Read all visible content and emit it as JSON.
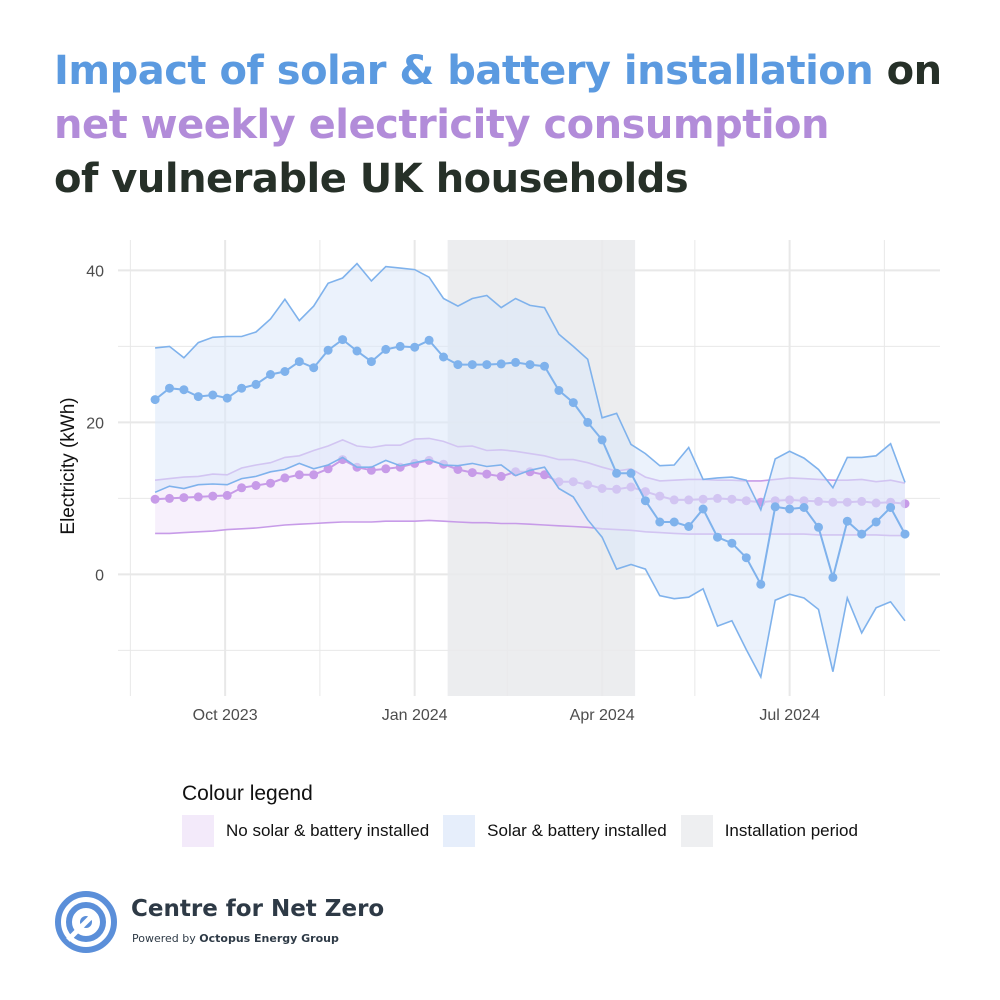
{
  "header": {
    "title_part1": "Impact of solar & battery installation",
    "title_part2": " on",
    "title_part3": "net weekly electricity consumption",
    "title_part4": "of vulnerable UK households"
  },
  "legend": {
    "title": "Colour legend",
    "items": [
      {
        "label": "No solar & battery installed",
        "color": "#f3eafa"
      },
      {
        "label": "Solar & battery installed",
        "color": "#e6eefb"
      },
      {
        "label": "Installation period",
        "color": "#eeeff1"
      }
    ]
  },
  "branding": {
    "name": "Centre for Net Zero",
    "powered_prefix": "Powered by ",
    "powered_company": "Octopus Energy Group",
    "logo_icon": "target-rings-icon",
    "accent": "#5b8fd9"
  },
  "colors": {
    "solar_line": "#7fb2ec",
    "solar_fill": "#dbe7fa",
    "no_solar_line": "#c79be8",
    "no_solar_fill": "#f1e6fa",
    "installation_band": "#e9eaec",
    "grid": "#e8e8e8"
  },
  "chart_data": {
    "type": "line",
    "ylabel": "Electricity (kWh)",
    "xlabel": "",
    "x_ticks": [
      "Oct 2023",
      "Jan 2024",
      "Apr 2024",
      "Jul 2024"
    ],
    "y_ticks": [
      0,
      20,
      40
    ],
    "ylim": [
      -16,
      44
    ],
    "x_start": "2023-08-28",
    "grid": true,
    "installation_period": {
      "start": "2024-01-17",
      "end": "2024-04-17"
    },
    "series": [
      {
        "name": "Solar & battery installed",
        "band": true,
        "values": [
          23.0,
          24.5,
          24.3,
          23.4,
          23.6,
          23.2,
          24.5,
          25.0,
          26.3,
          26.7,
          28.0,
          27.2,
          29.5,
          30.9,
          29.4,
          28.0,
          29.6,
          30.0,
          29.9,
          30.8,
          28.6,
          27.6,
          27.6,
          27.6,
          27.7,
          27.9,
          27.6,
          27.4,
          24.2,
          22.6,
          20.0,
          17.7,
          13.3,
          13.3,
          9.7,
          6.9,
          6.9,
          6.3,
          8.6,
          4.9,
          4.1,
          2.2,
          -1.3,
          8.9,
          8.6,
          8.8,
          6.2,
          -0.4,
          7.0,
          5.3,
          6.9,
          8.8,
          5.3
        ],
        "upper": [
          29.8,
          30.0,
          28.5,
          30.5,
          31.2,
          31.3,
          31.3,
          31.9,
          33.6,
          36.2,
          33.4,
          35.3,
          38.3,
          39.0,
          40.9,
          38.6,
          40.5,
          40.3,
          40.1,
          39.1,
          36.3,
          35.3,
          36.3,
          36.7,
          35.1,
          36.3,
          35.4,
          35.1,
          31.6,
          30.0,
          28.3,
          20.6,
          21.2,
          17.1,
          15.9,
          14.3,
          14.4,
          16.7,
          12.5,
          12.7,
          12.8,
          12.4,
          8.5,
          15.2,
          16.2,
          15.3,
          13.8,
          11.4,
          15.4,
          15.4,
          15.6,
          17.2,
          12.1
        ],
        "lower": [
          10.8,
          11.6,
          11.3,
          11.8,
          11.9,
          11.8,
          12.6,
          12.9,
          13.5,
          13.8,
          14.6,
          13.9,
          14.4,
          15.4,
          14.1,
          14.1,
          15.0,
          14.3,
          14.7,
          15.1,
          14.4,
          14.3,
          14.6,
          14.2,
          14.4,
          13.0,
          13.7,
          14.1,
          11.3,
          10.2,
          7.2,
          4.9,
          0.7,
          1.3,
          0.7,
          -2.8,
          -3.2,
          -3.0,
          -1.9,
          -6.8,
          -6.1,
          -9.9,
          -13.5,
          -3.4,
          -2.6,
          -3.1,
          -4.6,
          -12.8,
          -3.1,
          -7.7,
          -4.4,
          -3.6,
          -6.1
        ]
      },
      {
        "name": "No solar & battery installed",
        "band": true,
        "values": [
          9.9,
          10.0,
          10.1,
          10.2,
          10.3,
          10.4,
          11.4,
          11.7,
          12.0,
          12.7,
          13.1,
          13.1,
          13.9,
          15.1,
          14.1,
          13.7,
          13.9,
          14.1,
          14.6,
          15.0,
          14.5,
          13.8,
          13.4,
          13.2,
          12.9,
          13.5,
          13.5,
          13.1,
          12.2,
          12.2,
          11.8,
          11.3,
          11.2,
          11.5,
          10.9,
          10.3,
          9.8,
          9.8,
          9.9,
          10.0,
          9.9,
          9.7,
          9.5,
          9.7,
          9.8,
          9.7,
          9.6,
          9.5,
          9.5,
          9.6,
          9.4,
          9.5,
          9.3
        ],
        "upper": [
          12.4,
          12.6,
          12.8,
          12.9,
          13.2,
          13.1,
          14.0,
          14.4,
          14.7,
          15.4,
          15.6,
          16.3,
          16.9,
          17.7,
          16.9,
          16.7,
          17.0,
          17.0,
          17.8,
          17.9,
          17.5,
          16.8,
          16.9,
          16.3,
          16.4,
          16.2,
          15.9,
          15.6,
          15.1,
          15.1,
          14.7,
          14.1,
          13.6,
          13.9,
          12.8,
          12.3,
          12.4,
          12.5,
          12.5,
          12.4,
          12.4,
          12.3,
          12.3,
          12.5,
          12.7,
          12.6,
          12.5,
          12.4,
          12.4,
          12.5,
          12.2,
          12.4,
          12.0
        ],
        "lower": [
          5.4,
          5.4,
          5.5,
          5.6,
          5.7,
          5.9,
          6.0,
          6.1,
          6.3,
          6.5,
          6.6,
          6.7,
          6.8,
          6.9,
          6.9,
          6.9,
          7.0,
          7.0,
          7.0,
          7.1,
          7.0,
          6.9,
          6.8,
          6.8,
          6.7,
          6.7,
          6.6,
          6.5,
          6.4,
          6.3,
          6.2,
          6.0,
          5.9,
          5.8,
          5.6,
          5.5,
          5.4,
          5.3,
          5.3,
          5.3,
          5.3,
          5.3,
          5.3,
          5.3,
          5.3,
          5.3,
          5.2,
          5.2,
          5.2,
          5.2,
          5.2,
          5.1,
          5.1
        ]
      }
    ]
  }
}
